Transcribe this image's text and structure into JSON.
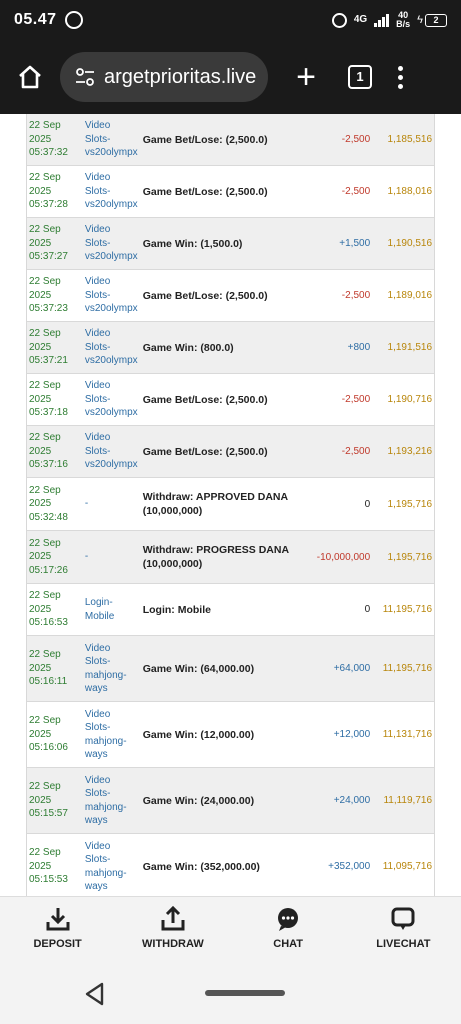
{
  "status": {
    "time": "05.47",
    "net": "4G",
    "speed_top": "40",
    "speed_bottom": "B/s",
    "battery": "2"
  },
  "browser": {
    "url": "argetprioritas.live",
    "tab_count": "1"
  },
  "rows": [
    {
      "date": "22 Sep",
      "year": "2025",
      "time": "05:37:32",
      "src1": "Video",
      "src2": "Slots-",
      "src3": "vs20olympx",
      "src4": "",
      "desc1": "Game Bet/Lose: (2,500.0)",
      "desc2": "",
      "amount": "-2,500",
      "amount_type": "neg",
      "balance": "1,185,516"
    },
    {
      "date": "22 Sep",
      "year": "2025",
      "time": "05:37:28",
      "src1": "Video",
      "src2": "Slots-",
      "src3": "vs20olympx",
      "src4": "",
      "desc1": "Game Bet/Lose: (2,500.0)",
      "desc2": "",
      "amount": "-2,500",
      "amount_type": "neg",
      "balance": "1,188,016"
    },
    {
      "date": "22 Sep",
      "year": "2025",
      "time": "05:37:27",
      "src1": "Video",
      "src2": "Slots-",
      "src3": "vs20olympx",
      "src4": "",
      "desc1": "Game Win: (1,500.0)",
      "desc2": "",
      "amount": "+1,500",
      "amount_type": "pos",
      "balance": "1,190,516"
    },
    {
      "date": "22 Sep",
      "year": "2025",
      "time": "05:37:23",
      "src1": "Video",
      "src2": "Slots-",
      "src3": "vs20olympx",
      "src4": "",
      "desc1": "Game Bet/Lose: (2,500.0)",
      "desc2": "",
      "amount": "-2,500",
      "amount_type": "neg",
      "balance": "1,189,016"
    },
    {
      "date": "22 Sep",
      "year": "2025",
      "time": "05:37:21",
      "src1": "Video",
      "src2": "Slots-",
      "src3": "vs20olympx",
      "src4": "",
      "desc1": "Game Win: (800.0)",
      "desc2": "",
      "amount": "+800",
      "amount_type": "pos",
      "balance": "1,191,516"
    },
    {
      "date": "22 Sep",
      "year": "2025",
      "time": "05:37:18",
      "src1": "Video",
      "src2": "Slots-",
      "src3": "vs20olympx",
      "src4": "",
      "desc1": "Game Bet/Lose: (2,500.0)",
      "desc2": "",
      "amount": "-2,500",
      "amount_type": "neg",
      "balance": "1,190,716"
    },
    {
      "date": "22 Sep",
      "year": "2025",
      "time": "05:37:16",
      "src1": "Video",
      "src2": "Slots-",
      "src3": "vs20olympx",
      "src4": "",
      "desc1": "Game Bet/Lose: (2,500.0)",
      "desc2": "",
      "amount": "-2,500",
      "amount_type": "neg",
      "balance": "1,193,216"
    },
    {
      "date": "22 Sep",
      "year": "2025",
      "time": "05:32:48",
      "src1": "-",
      "src2": "",
      "src3": "",
      "src4": "",
      "desc1": "Withdraw: APPROVED DANA",
      "desc2": "(10,000,000)",
      "amount": "0",
      "amount_type": "zero",
      "balance": "1,195,716"
    },
    {
      "date": "22 Sep",
      "year": "2025",
      "time": "05:17:26",
      "src1": "-",
      "src2": "",
      "src3": "",
      "src4": "",
      "desc1": "Withdraw: PROGRESS DANA",
      "desc2": "(10,000,000)",
      "amount": "-10,000,000",
      "amount_type": "neg",
      "balance": "1,195,716"
    },
    {
      "date": "22 Sep",
      "year": "2025",
      "time": "05:16:53",
      "src1": "Login-",
      "src2": "Mobile",
      "src3": "",
      "src4": "",
      "desc1": "Login: Mobile",
      "desc2": "",
      "amount": "0",
      "amount_type": "zero",
      "balance": "11,195,716"
    },
    {
      "date": "22 Sep",
      "year": "2025",
      "time": "05:16:11",
      "src1": "Video",
      "src2": "Slots-",
      "src3": "mahjong-",
      "src4": "ways",
      "desc1": "Game Win: (64,000.00)",
      "desc2": "",
      "amount": "+64,000",
      "amount_type": "pos",
      "balance": "11,195,716"
    },
    {
      "date": "22 Sep",
      "year": "2025",
      "time": "05:16:06",
      "src1": "Video",
      "src2": "Slots-",
      "src3": "mahjong-",
      "src4": "ways",
      "desc1": "Game Win: (12,000.00)",
      "desc2": "",
      "amount": "+12,000",
      "amount_type": "pos",
      "balance": "11,131,716"
    },
    {
      "date": "22 Sep",
      "year": "2025",
      "time": "05:15:57",
      "src1": "Video",
      "src2": "Slots-",
      "src3": "mahjong-",
      "src4": "ways",
      "desc1": "Game Win: (24,000.00)",
      "desc2": "",
      "amount": "+24,000",
      "amount_type": "pos",
      "balance": "11,119,716"
    },
    {
      "date": "22 Sep",
      "year": "2025",
      "time": "05:15:53",
      "src1": "Video",
      "src2": "Slots-",
      "src3": "mahjong-",
      "src4": "ways",
      "desc1": "Game Win: (352,000.00)",
      "desc2": "",
      "amount": "+352,000",
      "amount_type": "pos",
      "balance": "11,095,716"
    }
  ],
  "bottom_nav": {
    "deposit": "DEPOSIT",
    "withdraw": "WITHDRAW",
    "chat": "CHAT",
    "livechat": "LIVECHAT"
  }
}
